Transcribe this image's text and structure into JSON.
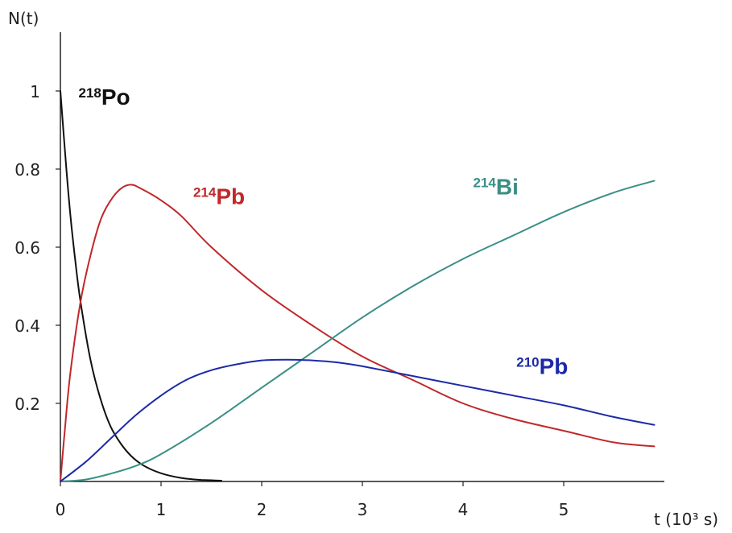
{
  "chart_data": {
    "type": "line",
    "ylabel": "N(t)",
    "xlabel": "t (10³ s)",
    "xlim": [
      0,
      5.9
    ],
    "ylim": [
      0,
      1.0
    ],
    "x_ticks": [
      "0",
      "1",
      "2",
      "3",
      "4",
      "5"
    ],
    "y_ticks": [
      "0.2",
      "0.4",
      "0.6",
      "0.8",
      "1"
    ],
    "grid": false,
    "series": [
      {
        "name": "218Po",
        "color": "#111111",
        "x": [
          0,
          0.05,
          0.1,
          0.15,
          0.2,
          0.3,
          0.4,
          0.5,
          0.6,
          0.7,
          0.8,
          0.9,
          1.0,
          1.1,
          1.2,
          1.3,
          1.4,
          1.5,
          1.6
        ],
        "y": [
          1.0,
          0.83,
          0.68,
          0.56,
          0.46,
          0.31,
          0.21,
          0.14,
          0.097,
          0.066,
          0.045,
          0.031,
          0.021,
          0.014,
          0.009,
          0.006,
          0.004,
          0.003,
          0.002
        ]
      },
      {
        "name": "214Pb",
        "color": "#c0282a",
        "x": [
          0,
          0.05,
          0.1,
          0.2,
          0.3,
          0.4,
          0.5,
          0.6,
          0.7,
          0.8,
          1.0,
          1.2,
          1.5,
          2.0,
          2.5,
          3.0,
          3.5,
          4.0,
          4.5,
          5.0,
          5.5,
          5.9
        ],
        "y": [
          0,
          0.15,
          0.28,
          0.46,
          0.58,
          0.67,
          0.72,
          0.75,
          0.76,
          0.75,
          0.72,
          0.68,
          0.6,
          0.49,
          0.4,
          0.32,
          0.26,
          0.2,
          0.16,
          0.13,
          0.1,
          0.09
        ]
      },
      {
        "name": "214Bi",
        "color": "#3a8f86",
        "x": [
          0,
          0.25,
          0.5,
          0.75,
          1.0,
          1.5,
          2.0,
          2.5,
          3.0,
          3.5,
          4.0,
          4.5,
          5.0,
          5.5,
          5.9
        ],
        "y": [
          0,
          0.005,
          0.02,
          0.04,
          0.07,
          0.15,
          0.24,
          0.33,
          0.42,
          0.5,
          0.57,
          0.63,
          0.69,
          0.74,
          0.77
        ]
      },
      {
        "name": "210Pb",
        "color": "#1c2aa8",
        "x": [
          0,
          0.25,
          0.5,
          0.75,
          1.0,
          1.25,
          1.5,
          1.75,
          2.0,
          2.25,
          2.5,
          2.75,
          3.0,
          3.5,
          4.0,
          4.5,
          5.0,
          5.5,
          5.9
        ],
        "y": [
          0,
          0.05,
          0.11,
          0.17,
          0.22,
          0.26,
          0.285,
          0.3,
          0.31,
          0.312,
          0.31,
          0.305,
          0.295,
          0.27,
          0.245,
          0.22,
          0.195,
          0.165,
          0.145
        ]
      }
    ],
    "annotations": [
      {
        "series": "218Po",
        "sup": "218",
        "text": "Po",
        "x": 0.18,
        "y": 0.965,
        "color": "#111111"
      },
      {
        "series": "214Pb",
        "sup": "214",
        "text": "Pb",
        "x": 1.32,
        "y": 0.71,
        "color": "#c0282a"
      },
      {
        "series": "214Bi",
        "sup": "214",
        "text": "Bi",
        "x": 4.1,
        "y": 0.735,
        "color": "#3a8f86"
      },
      {
        "series": "210Pb",
        "sup": "210",
        "text": "Pb",
        "x": 4.53,
        "y": 0.275,
        "color": "#1c2aa8"
      }
    ]
  }
}
